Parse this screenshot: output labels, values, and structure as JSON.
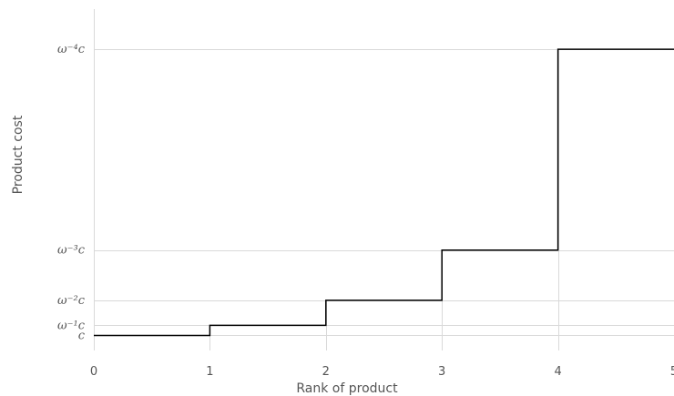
{
  "chart_data": {
    "type": "line",
    "step": true,
    "xlabel": "Rank of product",
    "ylabel": "Product cost",
    "xlim": [
      0,
      5
    ],
    "x_ticks": [
      "0",
      "1",
      "2",
      "3",
      "4",
      "5"
    ],
    "y_ticks": [
      {
        "label": "c",
        "value": 1.0
      },
      {
        "label": "ω⁻¹c",
        "value": 1.2
      },
      {
        "label": "ω⁻²c",
        "value": 1.7
      },
      {
        "label": "ω⁻³c",
        "value": 2.7
      },
      {
        "label": "ω⁻⁴c",
        "value": 6.7
      }
    ],
    "grid": true,
    "series": [
      {
        "x": [
          0,
          1,
          2,
          3,
          4,
          5
        ],
        "y": [
          1.0,
          1.2,
          1.7,
          2.7,
          6.7,
          6.7
        ]
      }
    ],
    "colors": {
      "line": "#000000",
      "grid": "#d9d9d9",
      "text": "#555555"
    }
  }
}
